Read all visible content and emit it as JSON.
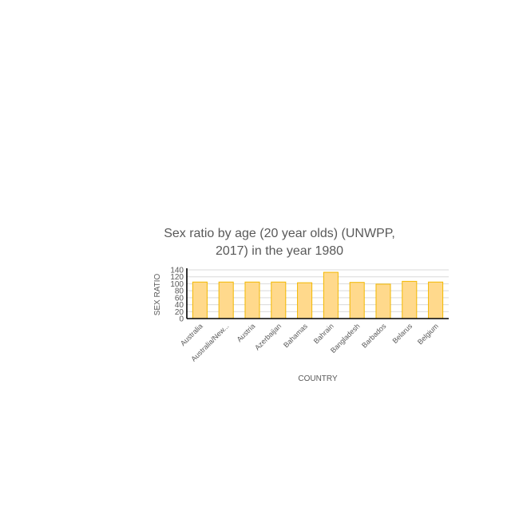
{
  "chart_data": {
    "type": "bar",
    "title": "Sex ratio by age (20 year olds) (UNWPP, 2017) in the year 1980",
    "title_line1": "Sex ratio by age (20 year olds) (UNWPP,",
    "title_line2": "2017) in the year 1980",
    "xlabel": "COUNTRY",
    "ylabel": "SEX RATIO",
    "ylim": [
      0,
      140
    ],
    "yticks": [
      0,
      20,
      40,
      60,
      80,
      100,
      120,
      140
    ],
    "grid": true,
    "categories": [
      "Australia",
      "Australia/New...",
      "Austria",
      "Azerbaijan",
      "Bahamas",
      "Bahrain",
      "Bangladesh",
      "Barbados",
      "Belarus",
      "Belgium"
    ],
    "values": [
      105,
      105,
      105,
      105,
      103,
      133,
      104,
      99,
      107,
      105
    ],
    "colors": {
      "bar_fill": "#FFD98C",
      "bar_stroke": "#F2B800",
      "grid": "#D9D9D9",
      "axis": "#000000",
      "text": "#595959"
    }
  }
}
